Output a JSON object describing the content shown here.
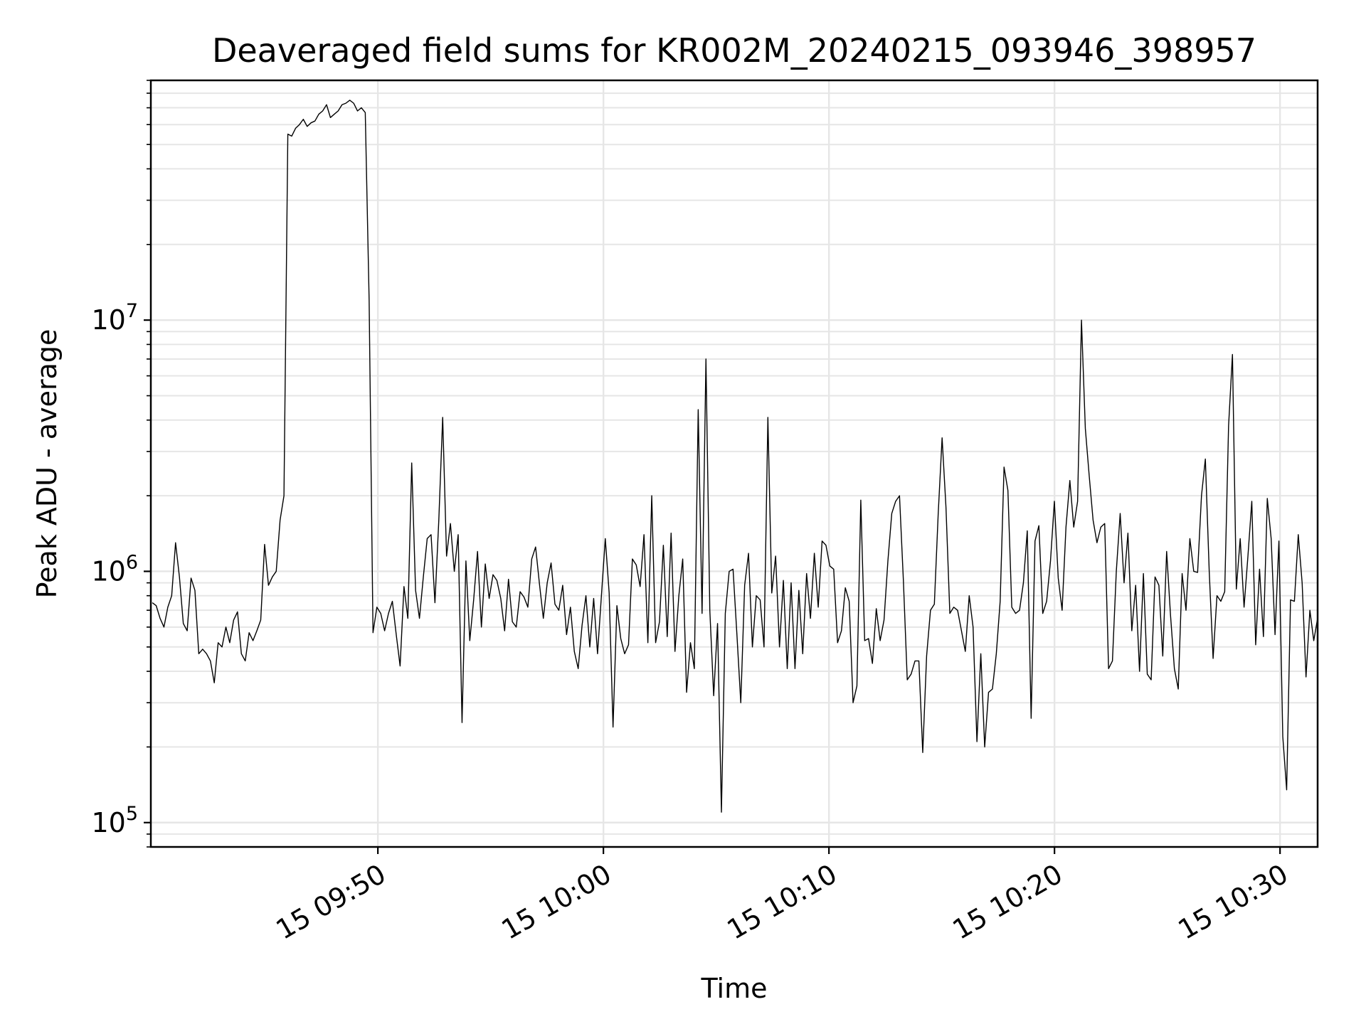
{
  "chart_data": {
    "type": "line",
    "title": "Deaveraged field sums for KR002M_20240215_093946_398957",
    "xlabel": "Time",
    "ylabel": "Peak ADU - average",
    "yscale": "log",
    "grid": true,
    "legend": "none",
    "x_range": [
      "2024-02-15 09:39:56",
      "2024-02-15 10:31:40"
    ],
    "ylim": [
      80000,
      90000000
    ],
    "x_ticks": [
      {
        "t": "2024-02-15 09:50",
        "label": "15 09:50"
      },
      {
        "t": "2024-02-15 10:00",
        "label": "15 10:00"
      },
      {
        "t": "2024-02-15 10:10",
        "label": "15 10:10"
      },
      {
        "t": "2024-02-15 10:20",
        "label": "15 10:20"
      },
      {
        "t": "2024-02-15 10:30",
        "label": "15 10:30"
      }
    ],
    "y_ticks": [
      {
        "value": 100000,
        "base": "10",
        "exp": "5"
      },
      {
        "value": 1000000,
        "base": "10",
        "exp": "6"
      },
      {
        "value": 10000000,
        "base": "10",
        "exp": "7"
      }
    ],
    "line_color": "#000000",
    "grid_color": "#e6e6e6",
    "series": [
      {
        "x_start": "2024-02-15 09:40:00",
        "x_end": "2024-02-15 10:31:40",
        "values": [
          750000,
          730000,
          650000,
          600000,
          720000,
          800000,
          1300000,
          950000,
          620000,
          580000,
          940000,
          840000,
          470000,
          490000,
          470000,
          440000,
          360000,
          520000,
          500000,
          600000,
          520000,
          640000,
          690000,
          470000,
          440000,
          570000,
          530000,
          580000,
          640000,
          1280000,
          880000,
          950000,
          1000000,
          1600000,
          2000000,
          55000000,
          54000000,
          58000000,
          60000000,
          63000000,
          59000000,
          61000000,
          62000000,
          66000000,
          68000000,
          72000000,
          64000000,
          66000000,
          68000000,
          72000000,
          73000000,
          75000000,
          73000000,
          68000000,
          70000000,
          67000000,
          12000000,
          570000,
          720000,
          680000,
          580000,
          680000,
          760000,
          560000,
          420000,
          870000,
          650000,
          2700000,
          840000,
          650000,
          950000,
          1350000,
          1400000,
          750000,
          1600000,
          4100000,
          1150000,
          1550000,
          1000000,
          1400000,
          250000,
          1100000,
          530000,
          770000,
          1200000,
          600000,
          1070000,
          780000,
          970000,
          920000,
          780000,
          580000,
          930000,
          630000,
          600000,
          830000,
          790000,
          720000,
          1120000,
          1250000,
          890000,
          650000,
          900000,
          1080000,
          740000,
          700000,
          880000,
          560000,
          720000,
          480000,
          410000,
          610000,
          800000,
          500000,
          780000,
          470000,
          800000,
          1350000,
          820000,
          240000,
          730000,
          540000,
          470000,
          510000,
          1120000,
          1060000,
          870000,
          1400000,
          520000,
          2000000,
          520000,
          630000,
          1270000,
          550000,
          1420000,
          480000,
          800000,
          1120000,
          330000,
          520000,
          410000,
          4400000,
          680000,
          7000000,
          700000,
          320000,
          620000,
          110000,
          680000,
          1000000,
          1020000,
          560000,
          300000,
          880000,
          1180000,
          500000,
          800000,
          770000,
          500000,
          4100000,
          820000,
          1150000,
          500000,
          920000,
          410000,
          900000,
          410000,
          840000,
          470000,
          980000,
          650000,
          1180000,
          720000,
          1320000,
          1270000,
          1050000,
          1020000,
          520000,
          580000,
          860000,
          760000,
          300000,
          350000,
          1920000,
          530000,
          540000,
          430000,
          710000,
          530000,
          640000,
          1100000,
          1700000,
          1900000,
          2000000,
          920000,
          370000,
          390000,
          440000,
          440000,
          190000,
          460000,
          700000,
          740000,
          1700000,
          3400000,
          1800000,
          680000,
          720000,
          700000,
          580000,
          480000,
          800000,
          600000,
          210000,
          470000,
          200000,
          330000,
          340000,
          470000,
          760000,
          2600000,
          2100000,
          720000,
          680000,
          700000,
          900000,
          1450000,
          260000,
          1320000,
          1520000,
          680000,
          760000,
          1100000,
          1900000,
          940000,
          700000,
          1500000,
          2300000,
          1500000,
          1900000,
          10000000,
          3700000,
          2400000,
          1600000,
          1300000,
          1500000,
          1550000,
          410000,
          440000,
          1000000,
          1700000,
          900000,
          1420000,
          580000,
          880000,
          400000,
          980000,
          390000,
          370000,
          950000,
          880000,
          460000,
          1200000,
          670000,
          410000,
          340000,
          980000,
          700000,
          1350000,
          1000000,
          990000,
          2000000,
          2800000,
          1000000,
          450000,
          800000,
          760000,
          830000,
          3800000,
          7300000,
          850000,
          1350000,
          720000,
          1150000,
          1900000,
          510000,
          1020000,
          550000,
          1950000,
          1350000,
          560000,
          1320000,
          220000,
          135000,
          770000,
          760000,
          1400000,
          900000,
          380000,
          700000,
          530000,
          650000
        ]
      }
    ]
  }
}
